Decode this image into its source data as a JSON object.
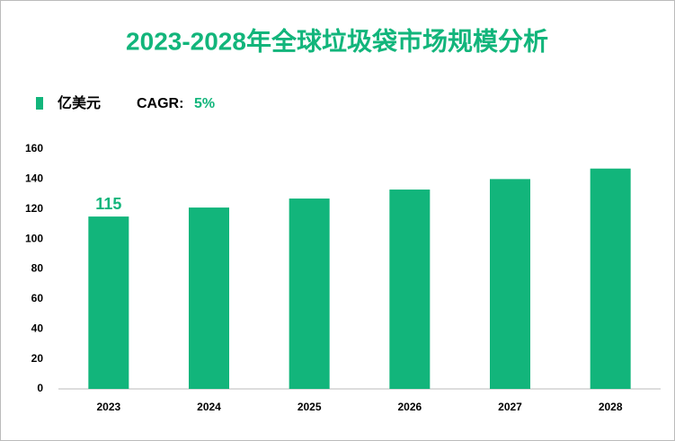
{
  "chart_data": {
    "type": "bar",
    "title": "2023-2028年全球垃圾袋市场规模分析",
    "annotation": {
      "label": "CAGR:",
      "value": "5%"
    },
    "categories": [
      "2023",
      "2024",
      "2025",
      "2026",
      "2027",
      "2028"
    ],
    "series": [
      {
        "name": "亿美元",
        "color": "#12b57b",
        "values": [
          115,
          121,
          127,
          133,
          140,
          147
        ],
        "value_labels": [
          "115",
          null,
          null,
          null,
          null,
          null
        ]
      }
    ],
    "ylim": [
      0,
      160
    ],
    "yticks": [
      0,
      20,
      40,
      60,
      80,
      100,
      120,
      140,
      160
    ],
    "grid": false
  }
}
